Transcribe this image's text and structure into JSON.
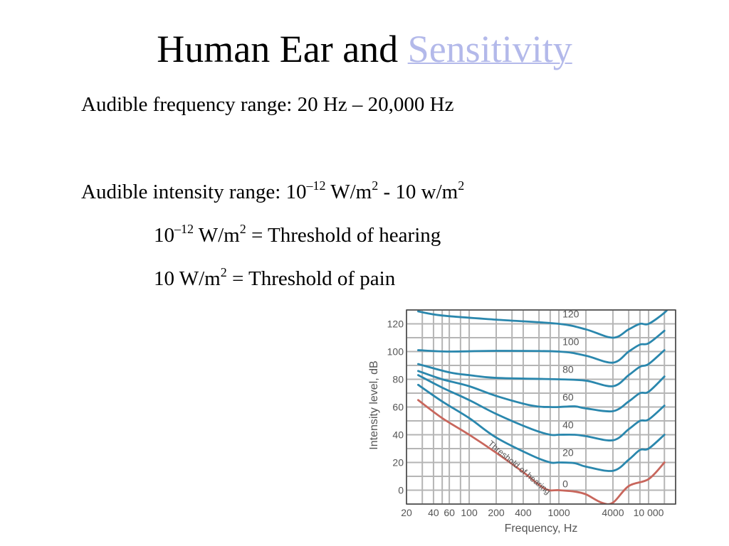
{
  "title": {
    "prefix": "Human Ear and ",
    "link": "Sensitivity"
  },
  "lines": {
    "frequency_range": "Audible frequency range: 20 Hz – 20,000 Hz",
    "intensity_prefix": "Audible intensity range: 10",
    "intensity_exp": "–12",
    "intensity_mid": " W/m",
    "intensity_sq": "2",
    "intensity_tail": " - 10 w/m",
    "intensity_sq2": "2",
    "hearing_base": "10",
    "hearing_exp": "–12",
    "hearing_unit": " W/m",
    "hearing_sq": "2",
    "hearing_text": " = Threshold of hearing",
    "pain_base": "10 W/m",
    "pain_sq": "2",
    "pain_text": " = Threshold of pain"
  },
  "colors": {
    "link": "#b3b9ea",
    "curves": "#2a87ad",
    "threshold": "#c8665c",
    "grid": "#b5b5b5"
  },
  "chart_data": {
    "type": "line",
    "xlabel": "Frequency, Hz",
    "ylabel": "Intensity level, dB",
    "xscale": "log",
    "xlim": [
      20,
      20000
    ],
    "ylim": [
      -10,
      130
    ],
    "grid": true,
    "xticks": [
      20,
      40,
      60,
      100,
      200,
      400,
      1000,
      4000,
      10000
    ],
    "xtick_labels": [
      "20",
      "40",
      "60",
      "100",
      "200",
      "400",
      "1000",
      "4000",
      "10 000"
    ],
    "yticks": [
      0,
      20,
      40,
      60,
      80,
      100,
      120
    ],
    "ytick_labels": [
      "0",
      "20",
      "40",
      "60",
      "80",
      "100",
      "120"
    ],
    "annotation": "Threshold of hearing",
    "series": [
      {
        "label": "0",
        "threshold": true,
        "x": [
          27,
          50,
          100,
          200,
          400,
          700,
          1000,
          1500,
          2000,
          3000,
          4000,
          6000,
          10000,
          15000
        ],
        "y": [
          65,
          52,
          40,
          27,
          13,
          1,
          0,
          -1,
          -3,
          -9,
          -9,
          3,
          8,
          20
        ]
      },
      {
        "label": "20",
        "x": [
          27,
          50,
          100,
          200,
          500,
          800,
          1000,
          1500,
          2000,
          4000,
          6000,
          8000,
          10000,
          15000
        ],
        "y": [
          76,
          64,
          52,
          38,
          25,
          20,
          20,
          19.5,
          17,
          14,
          22,
          29,
          30,
          40
        ]
      },
      {
        "label": "40",
        "x": [
          27,
          50,
          100,
          200,
          500,
          800,
          1000,
          1500,
          2000,
          4000,
          6000,
          8000,
          10000,
          15000
        ],
        "y": [
          83,
          74,
          65,
          55,
          44,
          40,
          40,
          40,
          39,
          36,
          44,
          50,
          51,
          61
        ]
      },
      {
        "label": "60",
        "x": [
          27,
          50,
          100,
          200,
          500,
          800,
          1000,
          1500,
          2000,
          4000,
          6000,
          8000,
          10000,
          15000
        ],
        "y": [
          86,
          80,
          75,
          68,
          61,
          60,
          60,
          60.5,
          59,
          57,
          64,
          70,
          71,
          82
        ]
      },
      {
        "label": "80",
        "x": [
          27,
          60,
          100,
          200,
          1000,
          2000,
          4000,
          6000,
          8000,
          10000,
          15000
        ],
        "y": [
          91,
          85,
          83,
          81,
          80,
          79,
          75,
          83,
          89,
          91,
          101
        ]
      },
      {
        "label": "100",
        "x": [
          27,
          60,
          200,
          1000,
          2000,
          4000,
          6000,
          8000,
          10000,
          15000
        ],
        "y": [
          101,
          100,
          100.5,
          100,
          97,
          92,
          100,
          105,
          106,
          115
        ]
      },
      {
        "label": "120",
        "x": [
          27,
          50,
          200,
          1000,
          2000,
          4000,
          6000,
          8000,
          10000,
          15000,
          18000
        ],
        "y": [
          129,
          126,
          123,
          120,
          116,
          110,
          116,
          120,
          120,
          128,
          134
        ]
      }
    ]
  }
}
